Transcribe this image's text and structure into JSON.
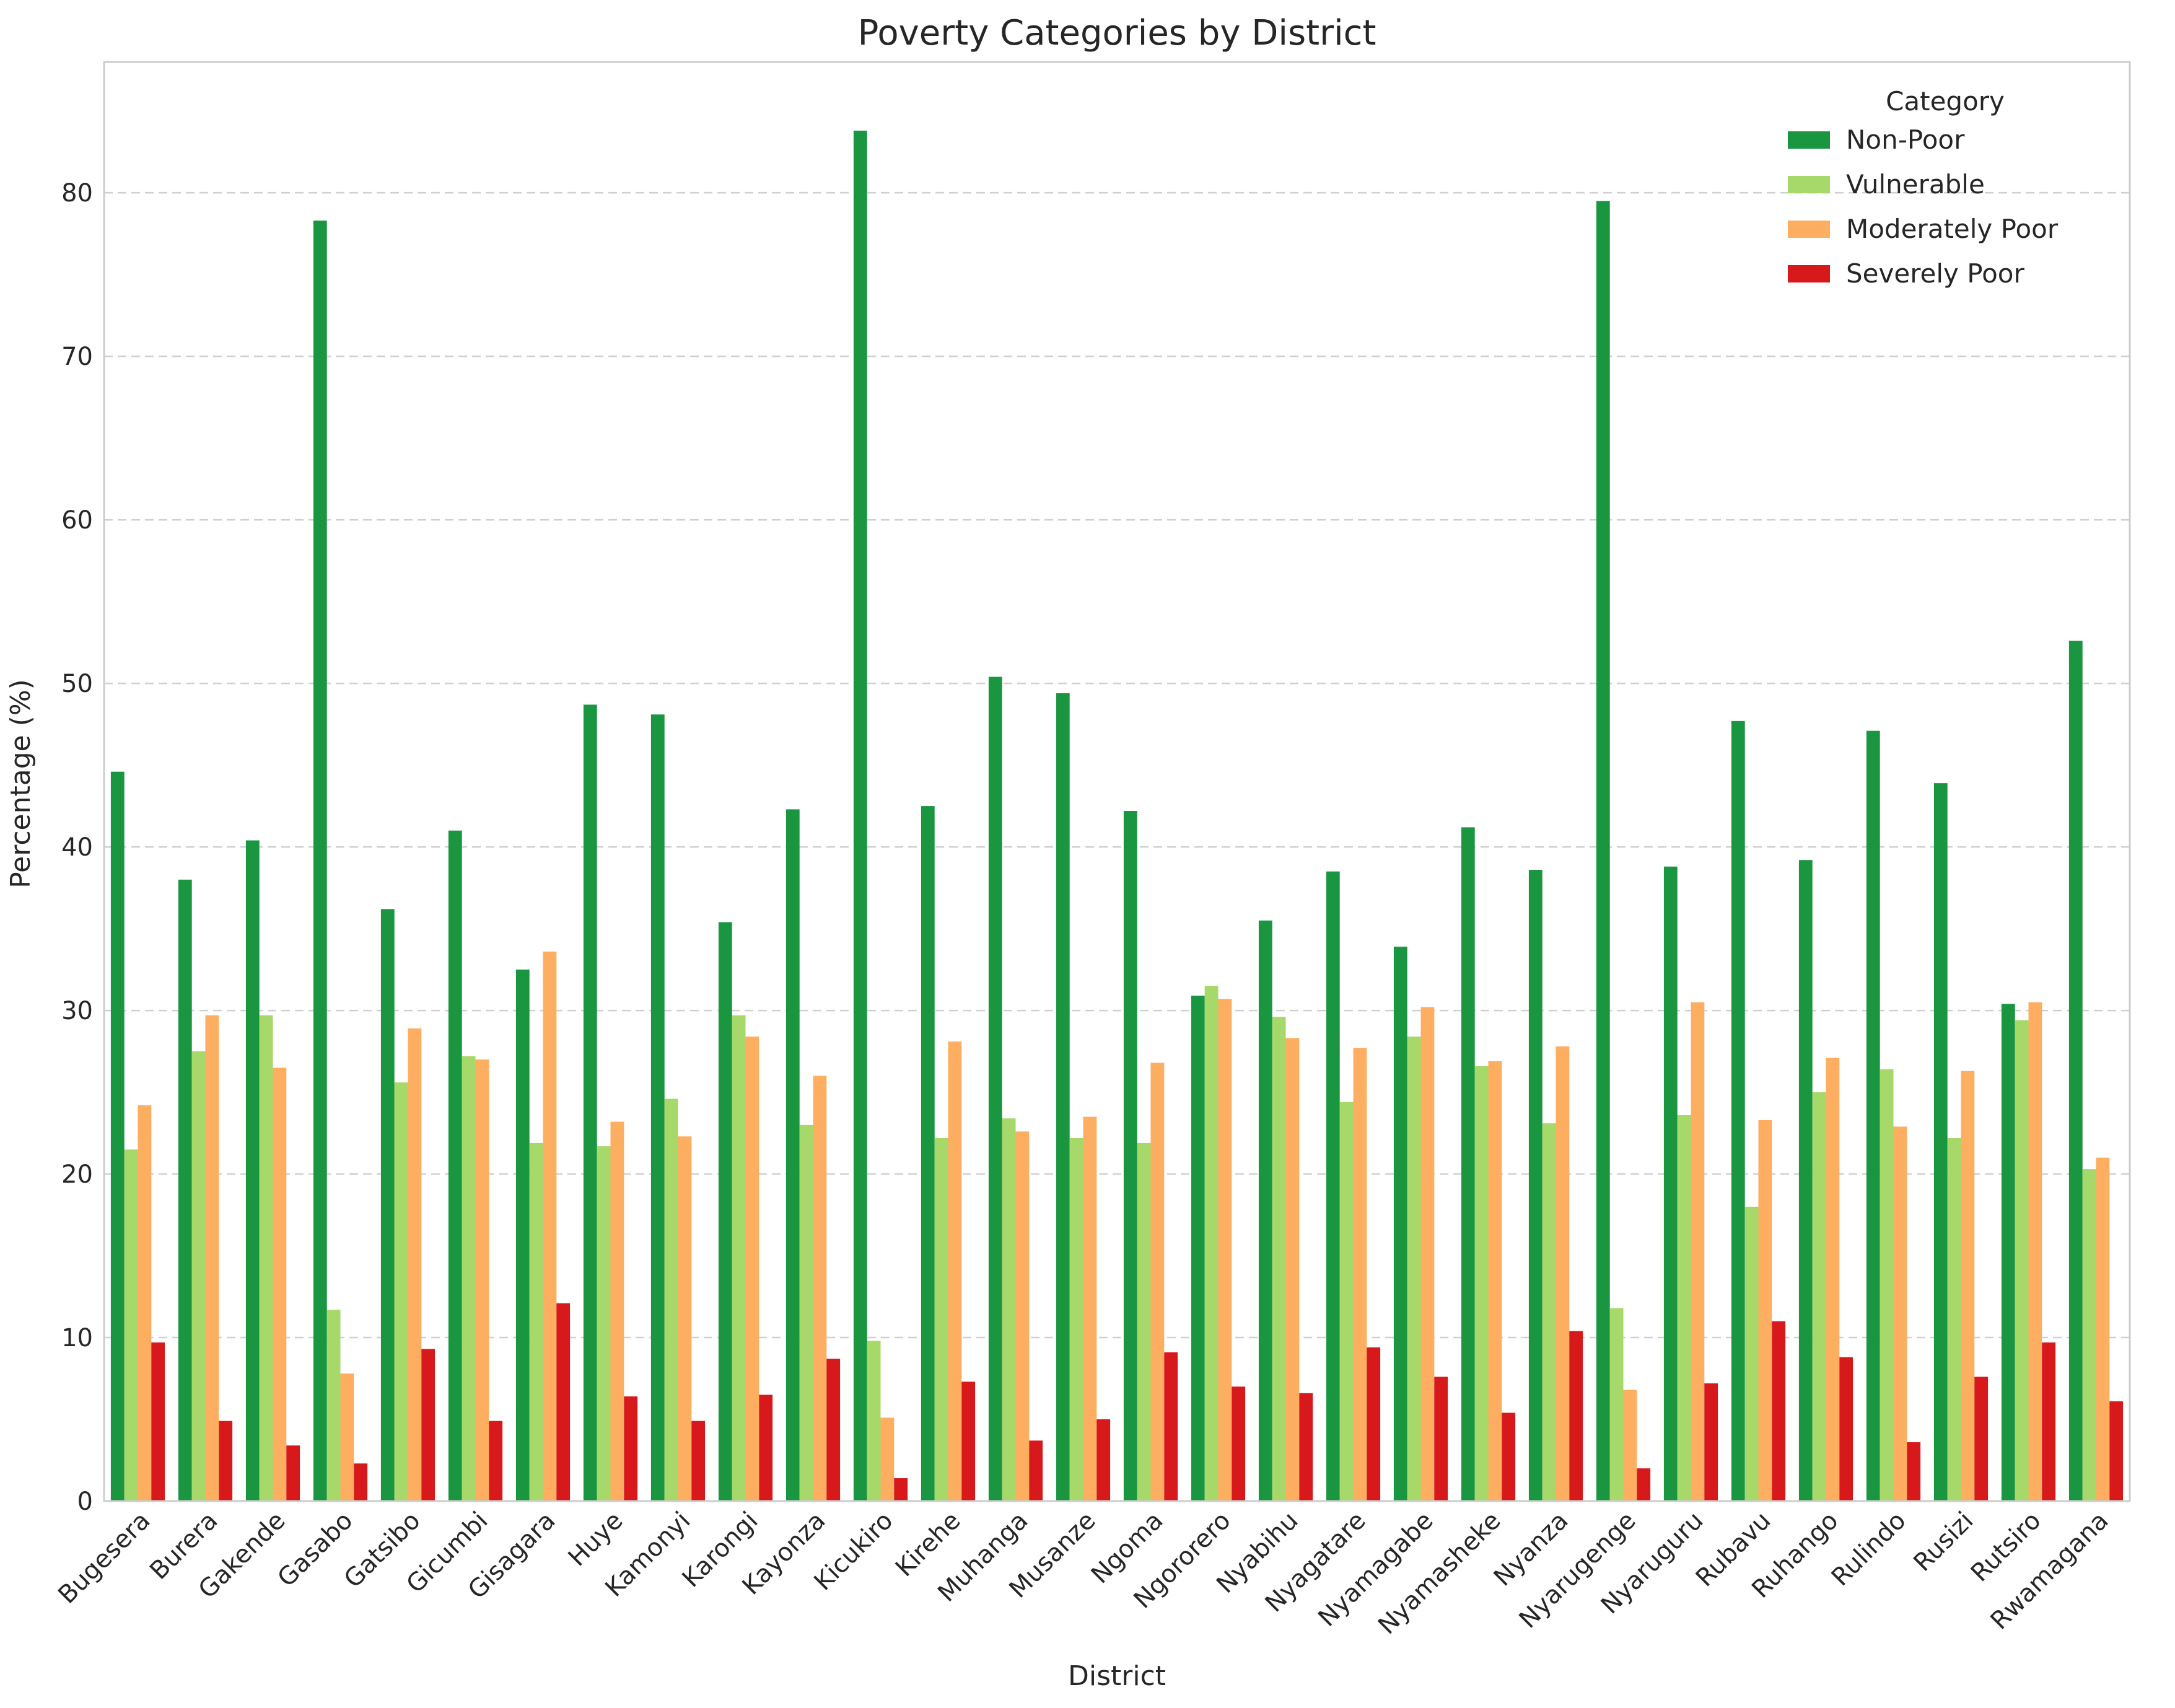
{
  "chart_data": {
    "type": "bar",
    "title": "Poverty Categories by District",
    "xlabel": "District",
    "ylabel": "Percentage (%)",
    "ylim": [
      0,
      88
    ],
    "yticks": [
      0,
      10,
      20,
      30,
      40,
      50,
      60,
      70,
      80
    ],
    "grid": true,
    "legend": {
      "title": "Category",
      "placement": "top-right"
    },
    "categories": [
      "Bugesera",
      "Burera",
      "Gakende",
      "Gasabo",
      "Gatsibo",
      "Gicumbi",
      "Gisagara",
      "Huye",
      "Kamonyi",
      "Karongi",
      "Kayonza",
      "Kicukiro",
      "Kirehe",
      "Muhanga",
      "Musanze",
      "Ngoma",
      "Ngororero",
      "Nyabihu",
      "Nyagatare",
      "Nyamagabe",
      "Nyamasheke",
      "Nyanza",
      "Nyarugenge",
      "Nyaruguru",
      "Rubavu",
      "Ruhango",
      "Rulindo",
      "Rusizi",
      "Rutsiro",
      "Rwamagana"
    ],
    "series": [
      {
        "name": "Non-Poor",
        "color": "#1a9641",
        "values": [
          44.6,
          38.0,
          40.4,
          78.3,
          36.2,
          41.0,
          32.5,
          48.7,
          48.1,
          35.4,
          42.3,
          83.8,
          42.5,
          50.4,
          49.4,
          42.2,
          30.9,
          35.5,
          38.5,
          33.9,
          41.2,
          38.6,
          79.5,
          38.8,
          47.7,
          39.2,
          47.1,
          43.9,
          30.4,
          52.6
        ]
      },
      {
        "name": "Vulnerable",
        "color": "#a6d96a",
        "values": [
          21.5,
          27.5,
          29.7,
          11.7,
          25.6,
          27.2,
          21.9,
          21.7,
          24.6,
          29.7,
          23.0,
          9.8,
          22.2,
          23.4,
          22.2,
          21.9,
          31.5,
          29.6,
          24.4,
          28.4,
          26.6,
          23.1,
          11.8,
          23.6,
          18.0,
          25.0,
          26.4,
          22.2,
          29.4,
          20.3
        ]
      },
      {
        "name": "Moderately Poor",
        "color": "#fdae61",
        "values": [
          24.2,
          29.7,
          26.5,
          7.8,
          28.9,
          27.0,
          33.6,
          23.2,
          22.3,
          28.4,
          26.0,
          5.1,
          28.1,
          22.6,
          23.5,
          26.8,
          30.7,
          28.3,
          27.7,
          30.2,
          26.9,
          27.8,
          6.8,
          30.5,
          23.3,
          27.1,
          22.9,
          26.3,
          30.5,
          21.0
        ]
      },
      {
        "name": "Severely Poor",
        "color": "#d7191c",
        "values": [
          9.7,
          4.9,
          3.4,
          2.3,
          9.3,
          4.9,
          12.1,
          6.4,
          4.9,
          6.5,
          8.7,
          1.4,
          7.3,
          3.7,
          5.0,
          9.1,
          7.0,
          6.6,
          9.4,
          7.6,
          5.4,
          10.4,
          2.0,
          7.2,
          11.0,
          8.8,
          3.6,
          7.6,
          9.7,
          6.1
        ]
      }
    ]
  }
}
